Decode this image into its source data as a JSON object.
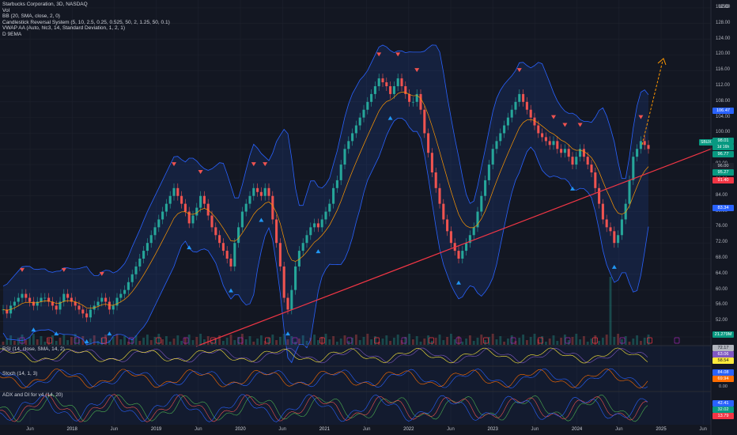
{
  "header": {
    "title": "Starbucks Corporation, 3D, NASDAQ",
    "indicators": [
      "Vol",
      "BB (20, SMA, close, 2, 0)",
      "Candlestick Reversal System (5, 10, 2.5, 0.25, 0.525, 50, 2, 1.25, 50, 0.1)",
      "VWAP AA (Auto, hlc3, 14, Standard Deviation, 1, 2, 1)",
      "D 9EMA"
    ]
  },
  "panes": {
    "rsi_label": "RSI (14, close, SMA, 14, 2)",
    "stoch_label": "Stoch (14, 1, 3)",
    "adx_label": "ADX and DI for v4 (14, 20)"
  },
  "price_axis": {
    "currency": "USD",
    "ticks": [
      "132.00",
      "128.00",
      "124.00",
      "120.00",
      "116.00",
      "112.00",
      "108.00",
      "104.00",
      "100.00",
      "96.00",
      "92.00",
      "88.00",
      "84.00",
      "80.00",
      "76.00",
      "72.00",
      "68.00",
      "64.00",
      "60.00",
      "56.00",
      "52.00",
      "48.00"
    ]
  },
  "time_axis": {
    "labels": [
      "Jun",
      "2018",
      "Jun",
      "2019",
      "Jun",
      "2020",
      "Jun",
      "2021",
      "Jun",
      "2022",
      "Jun",
      "2023",
      "Jun",
      "2024",
      "Jun",
      "2025",
      "Jun"
    ]
  },
  "badges": {
    "ticker": "SBUX",
    "bb_upper": "106.47",
    "last": "98.01",
    "timer": "1d 16h",
    "ema": "96.77",
    "vwap": "96.00",
    "bb_basis": "95.27",
    "level_red": "91.40",
    "bb_lower": "83.34",
    "volume": "21.279M",
    "rsi_1": "72.17",
    "rsi_2": "63.06",
    "rsi_3": "58.54",
    "stoch_1": "84.08",
    "stoch_2": "69.94",
    "stoch_zero": "0.00",
    "adx_1": "42.41",
    "adx_2": "32.02",
    "adx_3": "13.79"
  },
  "colors": {
    "background": "#131722",
    "up": "#26a69a",
    "down": "#ef5350",
    "bb_band": "#2962ff",
    "trendline": "#f23645",
    "projection": "#ff9800",
    "vwap_line": "#ff9800",
    "rsi_line": "#7e57c2",
    "adx_plus": "#4caf50",
    "adx_minus": "#ef5350"
  },
  "chart_data": {
    "type": "candlestick",
    "series_name": "SBUX",
    "y_range": [
      46,
      134
    ],
    "closes": [
      55,
      54,
      56,
      57,
      58,
      59,
      58,
      57,
      56,
      57,
      58,
      58,
      57,
      56,
      55,
      57,
      59,
      58,
      57,
      56,
      55,
      54,
      53,
      55,
      56,
      57,
      58,
      57,
      55,
      56,
      58,
      59,
      60,
      62,
      64,
      66,
      68,
      70,
      72,
      74,
      76,
      78,
      80,
      82,
      84,
      86,
      84,
      82,
      80,
      77,
      79,
      81,
      84,
      82,
      79,
      76,
      74,
      72,
      70,
      68,
      66,
      72,
      76,
      80,
      82,
      84,
      86,
      85,
      84,
      86,
      84,
      78,
      72,
      66,
      58,
      55,
      60,
      66,
      70,
      72,
      74,
      76,
      77,
      76,
      78,
      80,
      82,
      86,
      88,
      92,
      96,
      98,
      100,
      102,
      104,
      106,
      108,
      110,
      112,
      114,
      113,
      112,
      110,
      112,
      114,
      112,
      110,
      108,
      108,
      110,
      106,
      100,
      95,
      90,
      86,
      82,
      78,
      75,
      72,
      70,
      68,
      70,
      72,
      74,
      76,
      80,
      84,
      88,
      92,
      96,
      98,
      100,
      102,
      104,
      106,
      108,
      110,
      108,
      106,
      104,
      102,
      100,
      99,
      98,
      97,
      98,
      96,
      95,
      96,
      94,
      92,
      94,
      96,
      94,
      92,
      90,
      86,
      82,
      78,
      76,
      75,
      72,
      74,
      78,
      82,
      88,
      94,
      96,
      98,
      97,
      96
    ],
    "annotations": [
      "trendline",
      "projection-arrow",
      "buy-signals",
      "sell-signals"
    ]
  }
}
